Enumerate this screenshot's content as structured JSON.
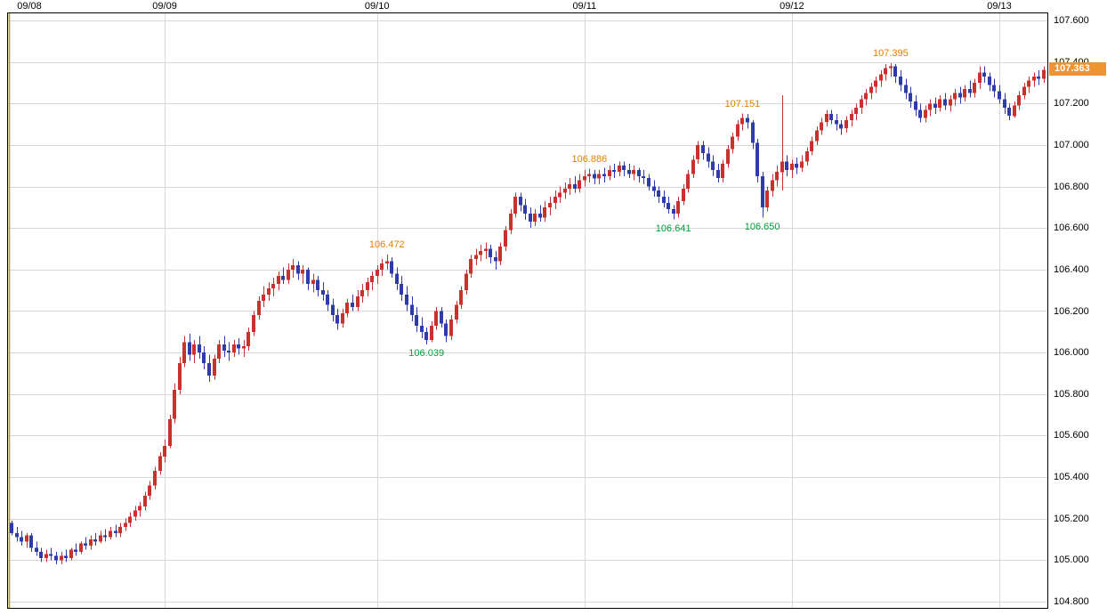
{
  "chart_data": {
    "type": "candlestick",
    "title": "",
    "x_axis": {
      "labels": [
        "09/08",
        "09/09",
        "09/10",
        "09/11",
        "09/12",
        "09/13"
      ],
      "candle_indices": [
        0,
        31,
        74,
        116,
        158,
        200
      ]
    },
    "y_axis": {
      "min": 104.8,
      "max": 107.6,
      "step": 0.2,
      "labels": [
        "107.600",
        "107.400",
        "107.200",
        "107.000",
        "106.800",
        "106.600",
        "106.400",
        "106.200",
        "106.000",
        "105.800",
        "105.600",
        "105.400",
        "105.200",
        "105.000",
        "104.800"
      ]
    },
    "candles": [
      [
        105.18,
        105.19,
        105.12,
        105.13
      ],
      [
        105.13,
        105.16,
        105.09,
        105.11
      ],
      [
        105.11,
        105.14,
        105.07,
        105.09
      ],
      [
        105.09,
        105.13,
        105.06,
        105.12
      ],
      [
        105.12,
        105.13,
        105.04,
        105.06
      ],
      [
        105.06,
        105.09,
        105.02,
        105.04
      ],
      [
        105.04,
        105.06,
        104.99,
        105.01
      ],
      [
        105.01,
        105.05,
        104.99,
        105.03
      ],
      [
        105.03,
        105.06,
        105.0,
        105.02
      ],
      [
        105.02,
        105.04,
        104.98,
        105.0
      ],
      [
        105.0,
        105.04,
        104.98,
        105.02
      ],
      [
        105.02,
        105.05,
        104.99,
        105.01
      ],
      [
        105.01,
        105.06,
        105.0,
        105.05
      ],
      [
        105.05,
        105.08,
        105.02,
        105.04
      ],
      [
        105.04,
        105.09,
        105.03,
        105.08
      ],
      [
        105.08,
        105.11,
        105.05,
        105.07
      ],
      [
        105.07,
        105.12,
        105.05,
        105.1
      ],
      [
        105.1,
        105.13,
        105.07,
        105.09
      ],
      [
        105.09,
        105.14,
        105.08,
        105.12
      ],
      [
        105.12,
        105.15,
        105.09,
        105.11
      ],
      [
        105.11,
        105.16,
        105.1,
        105.14
      ],
      [
        105.14,
        105.17,
        105.11,
        105.13
      ],
      [
        105.13,
        105.18,
        105.11,
        105.16
      ],
      [
        105.16,
        105.2,
        105.14,
        105.18
      ],
      [
        105.18,
        105.23,
        105.16,
        105.21
      ],
      [
        105.21,
        105.26,
        105.19,
        105.24
      ],
      [
        105.24,
        105.28,
        105.21,
        105.26
      ],
      [
        105.26,
        105.33,
        105.24,
        105.31
      ],
      [
        105.31,
        105.38,
        105.29,
        105.36
      ],
      [
        105.36,
        105.45,
        105.34,
        105.43
      ],
      [
        105.43,
        105.52,
        105.41,
        105.5
      ],
      [
        105.5,
        105.58,
        105.47,
        105.55
      ],
      [
        105.55,
        105.7,
        105.54,
        105.68
      ],
      [
        105.68,
        105.85,
        105.66,
        105.82
      ],
      [
        105.82,
        105.98,
        105.8,
        105.95
      ],
      [
        105.95,
        106.08,
        105.93,
        106.05
      ],
      [
        106.05,
        106.09,
        105.96,
        105.99
      ],
      [
        105.99,
        106.06,
        105.95,
        106.04
      ],
      [
        106.04,
        106.08,
        105.97,
        106.0
      ],
      [
        106.0,
        106.03,
        105.92,
        105.95
      ],
      [
        105.95,
        105.99,
        105.86,
        105.89
      ],
      [
        105.89,
        105.99,
        105.87,
        105.97
      ],
      [
        105.97,
        106.06,
        105.95,
        106.04
      ],
      [
        106.04,
        106.08,
        105.98,
        106.01
      ],
      [
        106.01,
        106.05,
        105.96,
        106.0
      ],
      [
        106.0,
        106.06,
        105.98,
        106.04
      ],
      [
        106.04,
        106.07,
        105.99,
        106.02
      ],
      [
        106.02,
        106.06,
        105.98,
        106.03
      ],
      [
        106.03,
        106.12,
        106.01,
        106.1
      ],
      [
        106.1,
        106.2,
        106.08,
        106.18
      ],
      [
        106.18,
        106.27,
        106.16,
        106.25
      ],
      [
        106.25,
        106.32,
        106.22,
        106.28
      ],
      [
        106.28,
        106.34,
        106.25,
        106.31
      ],
      [
        106.31,
        106.36,
        106.27,
        106.33
      ],
      [
        106.33,
        106.39,
        106.3,
        106.37
      ],
      [
        106.37,
        106.41,
        106.33,
        106.35
      ],
      [
        106.35,
        106.43,
        106.33,
        106.4
      ],
      [
        106.4,
        106.45,
        106.36,
        106.42
      ],
      [
        106.42,
        106.44,
        106.35,
        106.38
      ],
      [
        106.38,
        106.42,
        106.33,
        106.4
      ],
      [
        106.4,
        106.41,
        106.3,
        106.33
      ],
      [
        106.33,
        106.38,
        106.29,
        106.35
      ],
      [
        106.35,
        106.37,
        106.27,
        106.3
      ],
      [
        106.3,
        106.34,
        106.25,
        106.28
      ],
      [
        106.28,
        106.3,
        106.2,
        106.23
      ],
      [
        106.23,
        106.26,
        106.15,
        106.18
      ],
      [
        106.18,
        106.21,
        106.11,
        106.14
      ],
      [
        106.14,
        106.21,
        106.12,
        106.19
      ],
      [
        106.19,
        106.26,
        106.17,
        106.24
      ],
      [
        106.24,
        106.28,
        106.2,
        106.22
      ],
      [
        106.22,
        106.3,
        106.2,
        106.27
      ],
      [
        106.27,
        106.33,
        106.24,
        106.3
      ],
      [
        106.3,
        106.36,
        106.27,
        106.34
      ],
      [
        106.34,
        106.39,
        106.3,
        106.37
      ],
      [
        106.37,
        106.42,
        106.33,
        106.4
      ],
      [
        106.4,
        106.45,
        106.37,
        106.43
      ],
      [
        106.43,
        106.472,
        106.4,
        106.44
      ],
      [
        106.44,
        106.46,
        106.36,
        106.38
      ],
      [
        106.38,
        106.41,
        106.3,
        106.33
      ],
      [
        106.33,
        106.37,
        106.25,
        106.28
      ],
      [
        106.28,
        106.32,
        106.2,
        106.23
      ],
      [
        106.23,
        106.27,
        106.15,
        106.18
      ],
      [
        106.18,
        106.22,
        106.1,
        106.13
      ],
      [
        106.13,
        106.17,
        106.07,
        106.1
      ],
      [
        106.1,
        106.12,
        106.039,
        106.06
      ],
      [
        106.06,
        106.15,
        106.05,
        106.13
      ],
      [
        106.13,
        106.22,
        106.11,
        106.2
      ],
      [
        106.2,
        106.22,
        106.12,
        106.14
      ],
      [
        106.14,
        106.16,
        106.05,
        106.08
      ],
      [
        106.08,
        106.18,
        106.06,
        106.16
      ],
      [
        106.16,
        106.25,
        106.14,
        106.23
      ],
      [
        106.23,
        106.32,
        106.21,
        106.3
      ],
      [
        106.3,
        106.4,
        106.28,
        106.38
      ],
      [
        106.38,
        106.47,
        106.36,
        106.45
      ],
      [
        106.45,
        106.5,
        106.42,
        106.47
      ],
      [
        106.47,
        106.52,
        106.44,
        106.49
      ],
      [
        106.49,
        106.53,
        106.45,
        106.5
      ],
      [
        106.5,
        106.52,
        106.43,
        106.46
      ],
      [
        106.46,
        106.49,
        106.4,
        106.44
      ],
      [
        106.44,
        106.53,
        106.42,
        106.51
      ],
      [
        106.51,
        106.61,
        106.49,
        106.59
      ],
      [
        106.59,
        106.69,
        106.57,
        106.67
      ],
      [
        106.67,
        106.77,
        106.65,
        106.75
      ],
      [
        106.75,
        106.77,
        106.68,
        106.71
      ],
      [
        106.71,
        106.74,
        106.64,
        106.67
      ],
      [
        106.67,
        106.7,
        106.6,
        106.63
      ],
      [
        106.63,
        106.69,
        106.61,
        106.67
      ],
      [
        106.67,
        106.71,
        106.63,
        106.65
      ],
      [
        106.65,
        106.73,
        106.63,
        106.7
      ],
      [
        106.7,
        106.75,
        106.66,
        106.72
      ],
      [
        106.72,
        106.78,
        106.69,
        106.75
      ],
      [
        106.75,
        106.8,
        106.72,
        106.77
      ],
      [
        106.77,
        106.82,
        106.74,
        106.79
      ],
      [
        106.79,
        106.84,
        106.76,
        106.81
      ],
      [
        106.81,
        106.85,
        106.77,
        106.79
      ],
      [
        106.79,
        106.86,
        106.77,
        106.83
      ],
      [
        106.83,
        106.88,
        106.8,
        106.85
      ],
      [
        106.85,
        106.886,
        106.82,
        106.86
      ],
      [
        106.86,
        106.88,
        106.81,
        106.84
      ],
      [
        106.84,
        106.88,
        106.81,
        106.86
      ],
      [
        106.86,
        106.89,
        106.82,
        106.85
      ],
      [
        106.85,
        106.9,
        106.83,
        106.88
      ],
      [
        106.88,
        106.91,
        106.84,
        106.87
      ],
      [
        106.87,
        106.92,
        106.85,
        106.9
      ],
      [
        106.9,
        106.92,
        106.85,
        106.88
      ],
      [
        106.88,
        106.91,
        106.84,
        106.86
      ],
      [
        106.86,
        106.9,
        106.83,
        106.88
      ],
      [
        106.88,
        106.89,
        106.82,
        106.85
      ],
      [
        106.85,
        106.88,
        106.81,
        106.84
      ],
      [
        106.84,
        106.86,
        106.78,
        106.8
      ],
      [
        106.8,
        106.83,
        106.75,
        106.78
      ],
      [
        106.78,
        106.8,
        106.72,
        106.75
      ],
      [
        106.75,
        106.78,
        106.7,
        106.72
      ],
      [
        106.72,
        106.75,
        106.67,
        106.69
      ],
      [
        106.69,
        106.71,
        106.641,
        106.67
      ],
      [
        106.67,
        106.75,
        106.65,
        106.73
      ],
      [
        106.73,
        106.81,
        106.71,
        106.79
      ],
      [
        106.79,
        106.88,
        106.77,
        106.86
      ],
      [
        106.86,
        106.95,
        106.84,
        106.93
      ],
      [
        106.93,
        107.02,
        106.91,
        107.0
      ],
      [
        107.0,
        107.02,
        106.93,
        106.96
      ],
      [
        106.96,
        106.99,
        106.89,
        106.92
      ],
      [
        106.92,
        106.95,
        106.85,
        106.88
      ],
      [
        106.88,
        106.91,
        106.82,
        106.84
      ],
      [
        106.84,
        106.93,
        106.82,
        106.91
      ],
      [
        106.91,
        107.0,
        106.89,
        106.98
      ],
      [
        106.98,
        107.06,
        106.96,
        107.04
      ],
      [
        107.04,
        107.12,
        107.02,
        107.1
      ],
      [
        107.1,
        107.151,
        107.07,
        107.13
      ],
      [
        107.13,
        107.15,
        107.08,
        107.11
      ],
      [
        107.11,
        107.12,
        106.98,
        107.01
      ],
      [
        107.01,
        107.03,
        106.82,
        106.85
      ],
      [
        106.85,
        106.87,
        106.65,
        106.7
      ],
      [
        106.7,
        106.8,
        106.68,
        106.78
      ],
      [
        106.78,
        106.86,
        106.75,
        106.83
      ],
      [
        106.83,
        106.9,
        106.8,
        106.87
      ],
      [
        106.87,
        107.24,
        106.78,
        106.92
      ],
      [
        106.92,
        106.95,
        106.85,
        106.88
      ],
      [
        106.88,
        106.93,
        106.84,
        106.91
      ],
      [
        106.91,
        106.94,
        106.86,
        106.89
      ],
      [
        106.89,
        106.95,
        106.87,
        106.92
      ],
      [
        106.92,
        106.99,
        106.9,
        106.97
      ],
      [
        106.97,
        107.04,
        106.95,
        107.02
      ],
      [
        107.02,
        107.09,
        107.0,
        107.07
      ],
      [
        107.07,
        107.13,
        107.05,
        107.11
      ],
      [
        107.11,
        107.17,
        107.09,
        107.15
      ],
      [
        107.15,
        107.17,
        107.1,
        107.12
      ],
      [
        107.12,
        107.15,
        107.07,
        107.1
      ],
      [
        107.1,
        107.12,
        107.05,
        107.08
      ],
      [
        107.08,
        107.14,
        107.06,
        107.12
      ],
      [
        107.12,
        107.17,
        107.09,
        107.15
      ],
      [
        107.15,
        107.2,
        107.12,
        107.18
      ],
      [
        107.18,
        107.24,
        107.15,
        107.22
      ],
      [
        107.22,
        107.27,
        107.19,
        107.25
      ],
      [
        107.25,
        107.3,
        107.22,
        107.28
      ],
      [
        107.28,
        107.33,
        107.25,
        107.31
      ],
      [
        107.31,
        107.36,
        107.28,
        107.34
      ],
      [
        107.34,
        107.39,
        107.31,
        107.37
      ],
      [
        107.37,
        107.395,
        107.33,
        107.38
      ],
      [
        107.38,
        107.39,
        107.3,
        107.33
      ],
      [
        107.33,
        107.36,
        107.26,
        107.29
      ],
      [
        107.29,
        107.32,
        107.22,
        107.25
      ],
      [
        107.25,
        107.28,
        107.18,
        107.21
      ],
      [
        107.21,
        107.24,
        107.14,
        107.17
      ],
      [
        107.17,
        107.2,
        107.11,
        107.13
      ],
      [
        107.13,
        107.19,
        107.11,
        107.17
      ],
      [
        107.17,
        107.22,
        107.14,
        107.2
      ],
      [
        107.2,
        107.23,
        107.15,
        107.18
      ],
      [
        107.18,
        107.24,
        107.16,
        107.22
      ],
      [
        107.22,
        107.25,
        107.17,
        107.19
      ],
      [
        107.19,
        107.24,
        107.16,
        107.22
      ],
      [
        107.22,
        107.27,
        107.19,
        107.25
      ],
      [
        107.25,
        107.28,
        107.2,
        107.23
      ],
      [
        107.23,
        107.29,
        107.21,
        107.27
      ],
      [
        107.27,
        107.31,
        107.23,
        107.25
      ],
      [
        107.25,
        107.32,
        107.23,
        107.3
      ],
      [
        107.3,
        107.38,
        107.27,
        107.35
      ],
      [
        107.35,
        107.38,
        107.3,
        107.33
      ],
      [
        107.33,
        107.35,
        107.26,
        107.29
      ],
      [
        107.29,
        107.32,
        107.23,
        107.26
      ],
      [
        107.26,
        107.29,
        107.2,
        107.22
      ],
      [
        107.22,
        107.25,
        107.15,
        107.18
      ],
      [
        107.18,
        107.2,
        107.12,
        107.14
      ],
      [
        107.14,
        107.21,
        107.13,
        107.19
      ],
      [
        107.19,
        107.26,
        107.17,
        107.24
      ],
      [
        107.24,
        107.3,
        107.22,
        107.28
      ],
      [
        107.28,
        107.33,
        107.25,
        107.31
      ],
      [
        107.31,
        107.35,
        107.28,
        107.33
      ],
      [
        107.33,
        107.36,
        107.29,
        107.32
      ],
      [
        107.32,
        107.38,
        107.3,
        107.363
      ]
    ],
    "annotations": [
      {
        "text": "106.472",
        "value": 106.472,
        "candle_index": 76,
        "kind": "high"
      },
      {
        "text": "106.039",
        "value": 106.039,
        "candle_index": 84,
        "kind": "low"
      },
      {
        "text": "106.886",
        "value": 106.886,
        "candle_index": 117,
        "kind": "high"
      },
      {
        "text": "106.641",
        "value": 106.641,
        "candle_index": 134,
        "kind": "low"
      },
      {
        "text": "107.151",
        "value": 107.151,
        "candle_index": 148,
        "kind": "high"
      },
      {
        "text": "106.650",
        "value": 106.65,
        "candle_index": 152,
        "kind": "low"
      },
      {
        "text": "107.395",
        "value": 107.395,
        "candle_index": 178,
        "kind": "high"
      }
    ],
    "last_price": {
      "text": "107.363",
      "value": 107.363
    },
    "colors": {
      "up": "#c8312e",
      "down": "#2f3aab",
      "grid": "#d8d8d8",
      "border": "#000000",
      "session_line": "#a8a800",
      "annotation_high": "#e07f00",
      "annotation_low": "#00a03c",
      "last_price_bg": "#ef952f",
      "last_price_text": "#ffffff",
      "axis_text": "#000000"
    },
    "layout_hints": {
      "grid": true,
      "legend": false,
      "price_axis_side": "right",
      "date_axis_side": "top"
    }
  }
}
